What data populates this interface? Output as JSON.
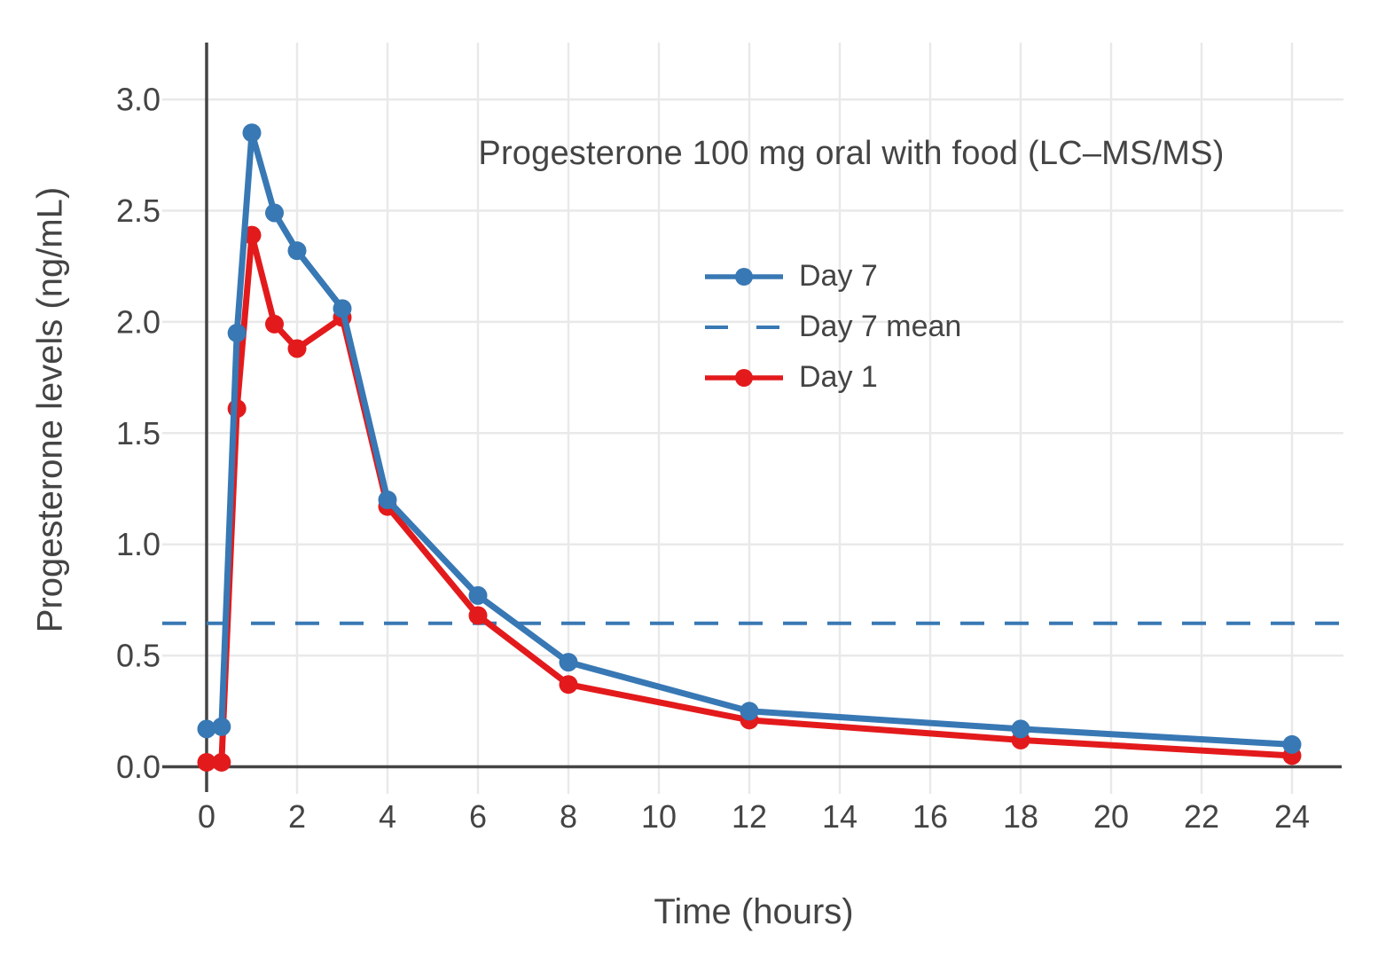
{
  "chart_data": {
    "type": "line",
    "title": "Progesterone 100 mg oral with food (LC–MS/MS)",
    "xlabel": "Time (hours)",
    "ylabel": "Progesterone levels (ng/mL)",
    "x": [
      0,
      0.33,
      0.67,
      1,
      1.5,
      2,
      3,
      4,
      6,
      8,
      12,
      18,
      24
    ],
    "series": [
      {
        "name": "Day 7",
        "type": "line+markers",
        "color": "#3878b4",
        "values": [
          0.17,
          0.18,
          1.95,
          2.85,
          2.49,
          2.32,
          2.06,
          1.2,
          0.77,
          0.47,
          0.25,
          0.17,
          0.1
        ]
      },
      {
        "name": "Day 7 mean",
        "type": "horizontal-dashed-line",
        "color": "#3878b4",
        "value": 0.645
      },
      {
        "name": "Day 1",
        "type": "line+markers",
        "color": "#e31a1c",
        "values": [
          0.02,
          0.02,
          1.61,
          2.39,
          1.99,
          1.88,
          2.02,
          1.17,
          0.68,
          0.37,
          0.21,
          0.12,
          0.05
        ]
      }
    ],
    "x_ticks": [
      0,
      2,
      4,
      6,
      8,
      10,
      12,
      14,
      16,
      18,
      20,
      22,
      24
    ],
    "y_ticks": [
      "0.0",
      "0.5",
      "1.0",
      "1.5",
      "2.0",
      "2.5",
      "3.0"
    ],
    "xlim": [
      -1,
      25.2
    ],
    "ylim": [
      -0.12,
      3.26
    ],
    "grid": true,
    "legend_position": "inside, upper middle-right"
  },
  "colors": {
    "background": "#ffffff",
    "text": "#444444",
    "grid": "#e9e9e9",
    "zeroline": "#444444",
    "day7": "#3878b4",
    "day1": "#e31a1c"
  }
}
